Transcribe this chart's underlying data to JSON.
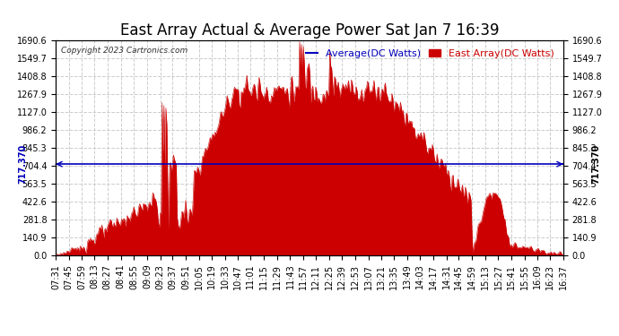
{
  "title": "East Array Actual & Average Power Sat Jan 7 16:39",
  "copyright": "Copyright 2023 Cartronics.com",
  "legend_average": "Average(DC Watts)",
  "legend_east": "East Array(DC Watts)",
  "avg_value": 717.37,
  "avg_label": "717.370",
  "ymin": 0.0,
  "ymax": 1690.6,
  "yticks": [
    0.0,
    140.9,
    281.8,
    422.6,
    563.5,
    704.4,
    845.3,
    986.2,
    1127.0,
    1267.9,
    1408.8,
    1549.7,
    1690.6
  ],
  "ytick_labels": [
    "0.0",
    "140.9",
    "281.8",
    "422.6",
    "563.5",
    "704.4",
    "845.3",
    "986.2",
    "1127.0",
    "1267.9",
    "1408.8",
    "1549.7",
    "1690.6"
  ],
  "background_color": "#ffffff",
  "fill_color": "#cc0000",
  "line_color": "#cc0000",
  "avg_line_color": "#0000bb",
  "title_color": "#000000",
  "copyright_color": "#333333",
  "grid_color": "#cccccc",
  "title_fontsize": 12,
  "tick_fontsize": 7,
  "copyright_fontsize": 6.5,
  "legend_fontsize": 8,
  "time_labels": [
    "07:31",
    "07:45",
    "07:59",
    "08:13",
    "08:27",
    "08:41",
    "08:55",
    "09:09",
    "09:23",
    "09:37",
    "09:51",
    "10:05",
    "10:19",
    "10:33",
    "10:47",
    "11:01",
    "11:15",
    "11:29",
    "11:43",
    "11:57",
    "12:11",
    "12:25",
    "12:39",
    "12:53",
    "13:07",
    "13:21",
    "13:35",
    "13:49",
    "14:03",
    "14:17",
    "14:31",
    "14:45",
    "14:59",
    "15:13",
    "15:27",
    "15:41",
    "15:55",
    "16:09",
    "16:23",
    "16:37"
  ],
  "num_points": 540
}
